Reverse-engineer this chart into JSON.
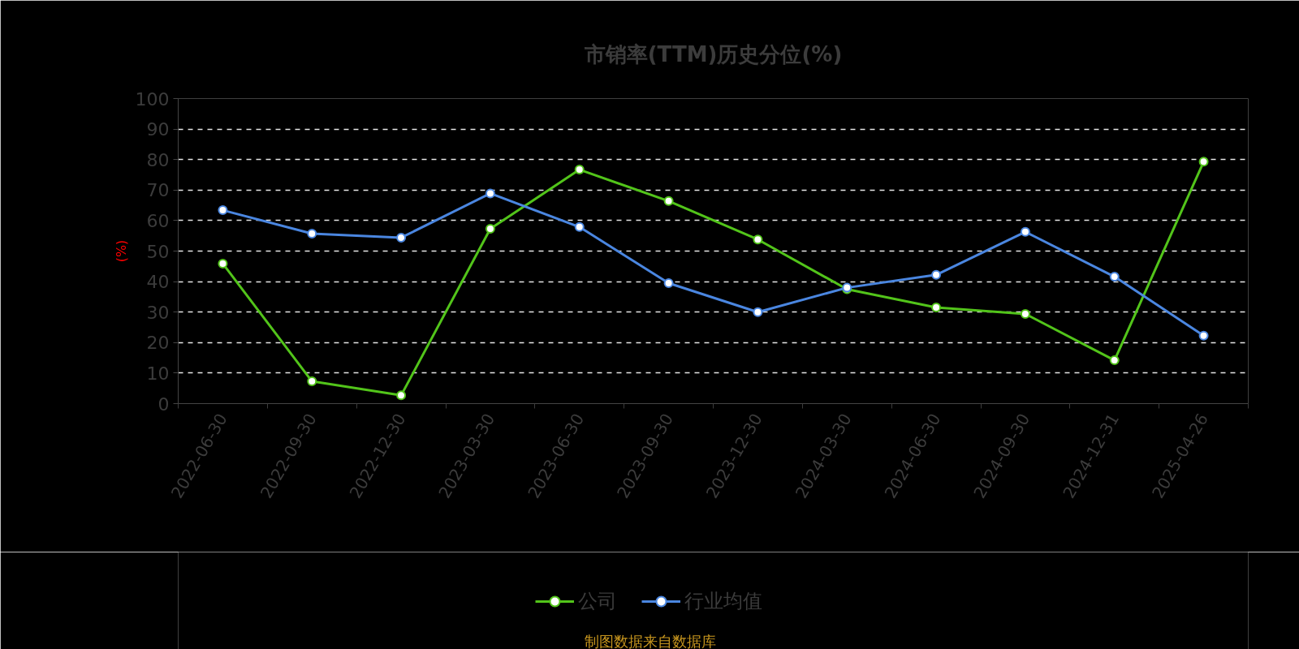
{
  "chart_data": {
    "type": "line",
    "title": "市销率(TTM)历史分位(%)",
    "ylabel": "(%)",
    "categories": [
      "2022-06-30",
      "2022-09-30",
      "2022-12-30",
      "2023-03-30",
      "2023-06-30",
      "2023-09-30",
      "2023-12-30",
      "2024-03-30",
      "2024-06-30",
      "2024-09-30",
      "2024-12-31",
      "2025-04-26"
    ],
    "series": [
      {
        "name": "公司",
        "color": "#52c41a",
        "values": [
          45.9,
          7.3,
          2.7,
          57.3,
          76.7,
          66.4,
          53.8,
          37.5,
          31.5,
          29.4,
          14.2,
          79.3
        ]
      },
      {
        "name": "行业均值",
        "color": "#4a86e0",
        "values": [
          63.4,
          55.7,
          54.4,
          68.9,
          57.9,
          39.5,
          30.0,
          38.0,
          42.2,
          56.3,
          41.6,
          22.3
        ]
      }
    ],
    "ylim": [
      0,
      100
    ],
    "yticks": [
      0,
      10,
      20,
      30,
      40,
      50,
      60,
      70,
      80,
      90,
      100
    ],
    "grid": "y",
    "legend": "bottom",
    "marker": "circle",
    "line_style": "solid",
    "annotations": [
      "制图数据来自数据库"
    ]
  }
}
